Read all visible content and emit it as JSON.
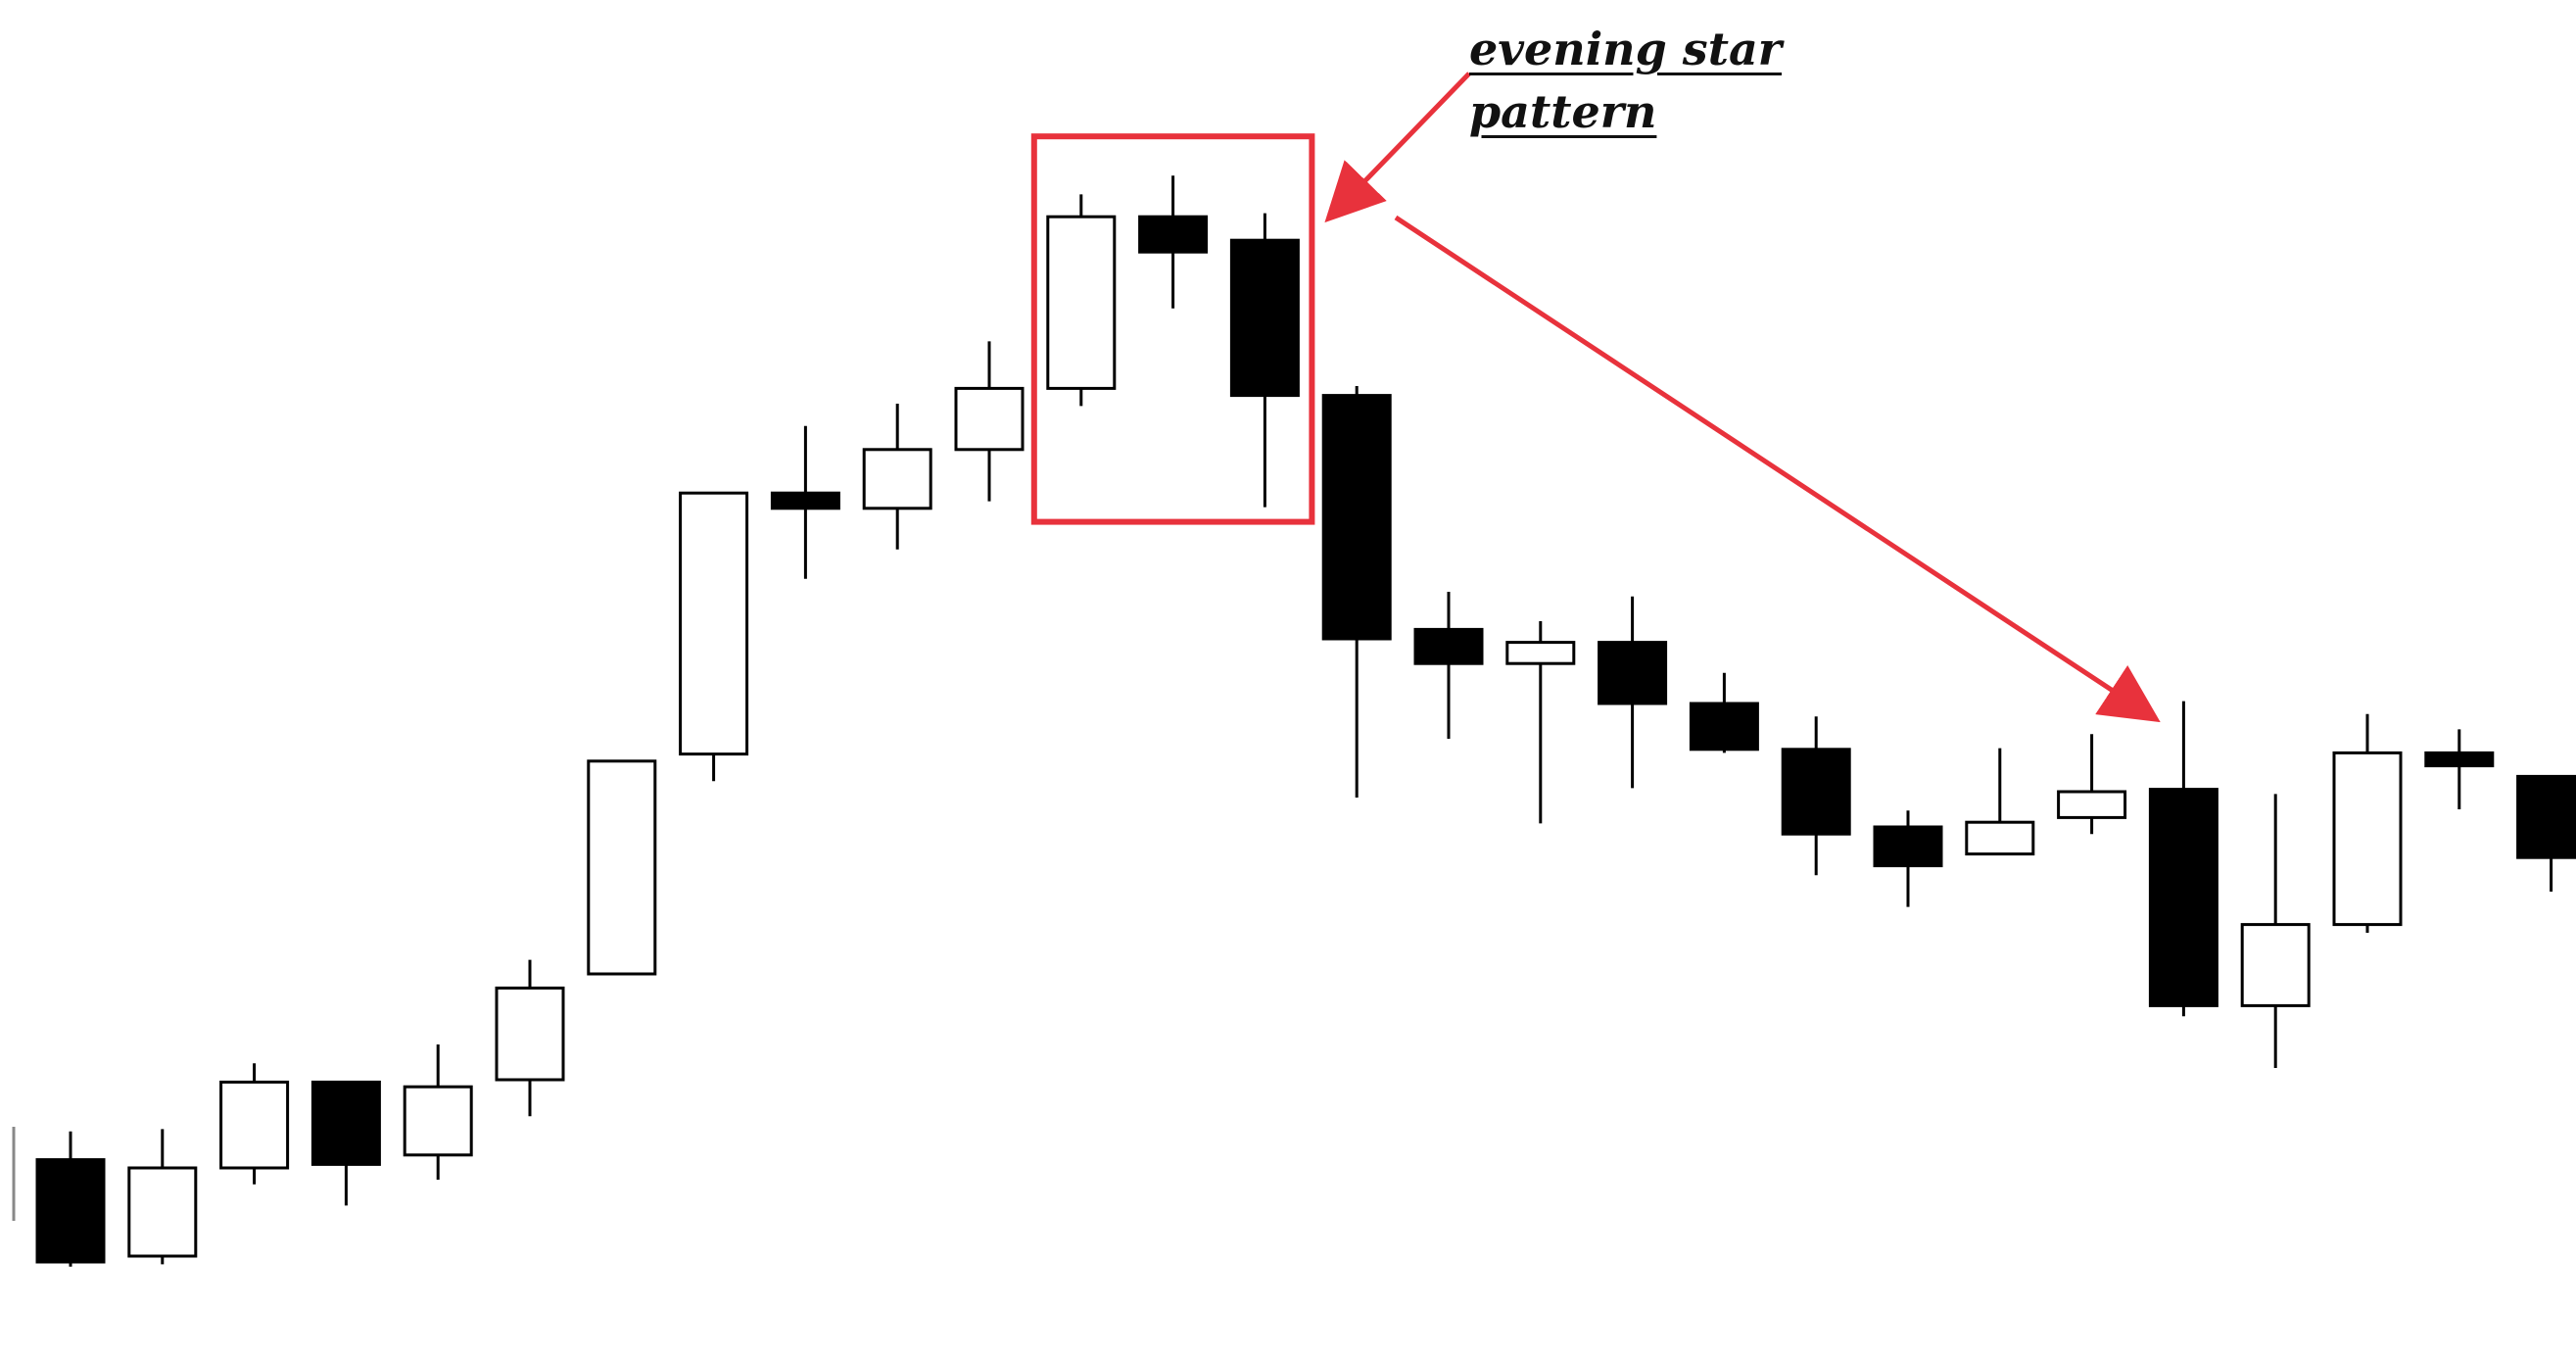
{
  "annotation": {
    "line1": "evening star",
    "line2": "pattern"
  },
  "colors": {
    "highlight": "#e8323c",
    "bearish": "#000000",
    "bullish": "#ffffff",
    "outline": "#000000"
  },
  "chart_data": {
    "type": "candlestick",
    "title": "",
    "xlabel": "",
    "ylabel": "",
    "ylim": [
      0,
      100
    ],
    "grid": false,
    "legend": "none",
    "candles": [
      {
        "open": 9.7,
        "high": 12.1,
        "low": 0.6,
        "close": 1.0
      },
      {
        "open": 1.5,
        "high": 12.3,
        "low": 0.8,
        "close": 9.0
      },
      {
        "open": 9.0,
        "high": 17.9,
        "low": 7.6,
        "close": 16.3
      },
      {
        "open": 16.3,
        "high": 16.3,
        "low": 5.8,
        "close": 9.3
      },
      {
        "open": 10.1,
        "high": 19.5,
        "low": 8.0,
        "close": 15.9
      },
      {
        "open": 16.5,
        "high": 26.7,
        "low": 13.4,
        "close": 24.3
      },
      {
        "open": 25.5,
        "high": 43.6,
        "low": 25.5,
        "close": 43.6
      },
      {
        "open": 44.2,
        "high": 66.4,
        "low": 41.9,
        "close": 66.4
      },
      {
        "open": 66.4,
        "high": 72.1,
        "low": 59.1,
        "close": 65.1
      },
      {
        "open": 65.1,
        "high": 74.0,
        "low": 61.6,
        "close": 70.1
      },
      {
        "open": 70.1,
        "high": 79.3,
        "low": 65.7,
        "close": 75.3
      },
      {
        "open": 75.3,
        "high": 91.8,
        "low": 73.8,
        "close": 89.9
      },
      {
        "open": 89.9,
        "high": 93.4,
        "low": 82.1,
        "close": 86.9
      },
      {
        "open": 87.9,
        "high": 90.2,
        "low": 65.2,
        "close": 74.7
      },
      {
        "open": 74.7,
        "high": 75.5,
        "low": 40.5,
        "close": 54.0
      },
      {
        "open": 54.8,
        "high": 58.0,
        "low": 45.5,
        "close": 51.9
      },
      {
        "open": 51.9,
        "high": 55.5,
        "low": 38.3,
        "close": 53.7
      },
      {
        "open": 53.7,
        "high": 57.6,
        "low": 41.3,
        "close": 48.5
      },
      {
        "open": 48.5,
        "high": 51.1,
        "low": 44.3,
        "close": 44.6
      },
      {
        "open": 44.6,
        "high": 47.4,
        "low": 33.9,
        "close": 37.4
      },
      {
        "open": 38.0,
        "high": 39.4,
        "low": 31.2,
        "close": 34.7
      },
      {
        "open": 35.7,
        "high": 44.7,
        "low": 35.7,
        "close": 38.4
      },
      {
        "open": 38.8,
        "high": 45.9,
        "low": 37.4,
        "close": 41.0
      },
      {
        "open": 41.2,
        "high": 48.7,
        "low": 21.9,
        "close": 22.8
      },
      {
        "open": 22.8,
        "high": 40.8,
        "low": 17.5,
        "close": 29.7
      },
      {
        "open": 29.7,
        "high": 47.6,
        "low": 29.0,
        "close": 44.3
      },
      {
        "open": 44.3,
        "high": 46.3,
        "low": 39.5,
        "close": 43.2
      },
      {
        "open": 42.3,
        "high": 42.3,
        "low": 32.5,
        "close": 35.4
      }
    ],
    "highlight_range": [
      11,
      13
    ]
  }
}
